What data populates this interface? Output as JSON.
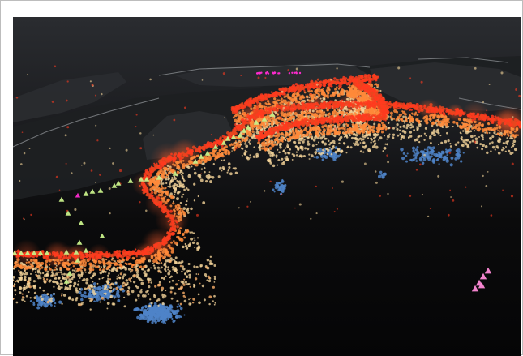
{
  "scene": {
    "view": "oblique-3d-seismicity",
    "colors": {
      "background": "#070708",
      "sky_top": "#26282c",
      "sky_bottom": "#121315",
      "land": "#2a2c2f",
      "land_dark": "#1e2022",
      "coastline": "#8e9196",
      "shallow": "#ff3b1f",
      "mid": "#ff8a3a",
      "intermediate": "#f5d59a",
      "deep": "#4f84c8",
      "volcano": "#c8f08a",
      "volcano_alt": "#ff8ad8",
      "magenta": "#ff2bd1"
    },
    "legend_categories": [
      "shallow-earthquake",
      "mid-depth-earthquake",
      "intermediate-earthquake",
      "deep-earthquake",
      "volcano"
    ]
  }
}
